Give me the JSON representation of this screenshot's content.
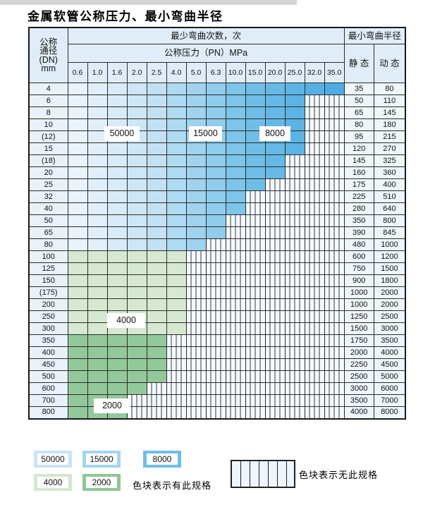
{
  "title": "金属软管公称压力、最小弯曲半径",
  "table": {
    "corner": {
      "line1": "公称",
      "line2": "通径",
      "line3": "(DN)",
      "line4": "mm"
    },
    "cycles_header": "最少弯曲次数，次",
    "pressure_header": "公称压力（PN）MPa",
    "radius_header": "最小弯曲半径",
    "static_header": "静 态",
    "dynamic_header": "动 态",
    "pressures": [
      "0.6",
      "1.0",
      "1.6",
      "2.0",
      "2.5",
      "4.0",
      "5.0",
      "6.3",
      "10.0",
      "15.0",
      "20.0",
      "25.0",
      "32.0",
      "35.0"
    ],
    "cycle_regions": {
      "blue_columns_0.6_to_2.5": "50000",
      "blue_columns_4.0_to_6.3": "15000",
      "blue_columns_10.0_to_35.0": "8000",
      "green_rows_100_to_300": "4000",
      "green_rows_350_to_800": "2000"
    },
    "rows": [
      {
        "dn": "4",
        "last": 13,
        "band": "blue",
        "static": "35",
        "dynamic": "80"
      },
      {
        "dn": "6",
        "last": 11,
        "band": "blue",
        "static": "50",
        "dynamic": "110"
      },
      {
        "dn": "8",
        "last": 11,
        "band": "blue",
        "static": "65",
        "dynamic": "145"
      },
      {
        "dn": "10",
        "last": 11,
        "band": "blue",
        "static": "80",
        "dynamic": "180"
      },
      {
        "dn": "(12)",
        "last": 11,
        "band": "blue",
        "static": "95",
        "dynamic": "215"
      },
      {
        "dn": "15",
        "last": 11,
        "band": "blue",
        "static": "120",
        "dynamic": "270"
      },
      {
        "dn": "(18)",
        "last": 10,
        "band": "blue",
        "static": "145",
        "dynamic": "325"
      },
      {
        "dn": "20",
        "last": 10,
        "band": "blue",
        "static": "160",
        "dynamic": "360"
      },
      {
        "dn": "25",
        "last": 9,
        "band": "blue",
        "static": "175",
        "dynamic": "400"
      },
      {
        "dn": "32",
        "last": 8,
        "band": "blue",
        "static": "225",
        "dynamic": "510"
      },
      {
        "dn": "40",
        "last": 8,
        "band": "blue",
        "static": "280",
        "dynamic": "640"
      },
      {
        "dn": "50",
        "last": 7,
        "band": "blue",
        "static": "350",
        "dynamic": "800"
      },
      {
        "dn": "65",
        "last": 7,
        "band": "blue",
        "static": "390",
        "dynamic": "845"
      },
      {
        "dn": "80",
        "last": 6,
        "band": "blue",
        "static": "480",
        "dynamic": "1000"
      },
      {
        "dn": "100",
        "last": 5,
        "band": "g4000",
        "static": "600",
        "dynamic": "1200"
      },
      {
        "dn": "125",
        "last": 5,
        "band": "g4000",
        "static": "750",
        "dynamic": "1500"
      },
      {
        "dn": "150",
        "last": 5,
        "band": "g4000",
        "static": "900",
        "dynamic": "1800"
      },
      {
        "dn": "(175)",
        "last": 5,
        "band": "g4000",
        "static": "1000",
        "dynamic": "2000"
      },
      {
        "dn": "200",
        "last": 5,
        "band": "g4000",
        "static": "1000",
        "dynamic": "2000"
      },
      {
        "dn": "250",
        "last": 5,
        "band": "g4000",
        "static": "1250",
        "dynamic": "2500"
      },
      {
        "dn": "300",
        "last": 5,
        "band": "g4000",
        "static": "1500",
        "dynamic": "3000"
      },
      {
        "dn": "350",
        "last": 4,
        "band": "g2000",
        "static": "1750",
        "dynamic": "3500"
      },
      {
        "dn": "400",
        "last": 4,
        "band": "g2000",
        "static": "2000",
        "dynamic": "4000"
      },
      {
        "dn": "450",
        "last": 4,
        "band": "g2000",
        "static": "2250",
        "dynamic": "4500"
      },
      {
        "dn": "500",
        "last": 4,
        "band": "g2000",
        "static": "2500",
        "dynamic": "5000"
      },
      {
        "dn": "600",
        "last": 3,
        "band": "g2000",
        "static": "3000",
        "dynamic": "6000"
      },
      {
        "dn": "700",
        "last": 2,
        "band": "g2000",
        "static": "3500",
        "dynamic": "7000"
      },
      {
        "dn": "800",
        "last": 2,
        "band": "g2000",
        "static": "4000",
        "dynamic": "8000"
      }
    ],
    "overlay_labels": [
      {
        "id": "label-50000",
        "text": "50000"
      },
      {
        "id": "label-15000",
        "text": "15000"
      },
      {
        "id": "label-8000",
        "text": "8000"
      },
      {
        "id": "label-4000",
        "text": "4000"
      },
      {
        "id": "label-2000",
        "text": "2000"
      }
    ]
  },
  "legend": {
    "has_spec_items": [
      {
        "label": "50000",
        "color": "#c9e3f6"
      },
      {
        "label": "15000",
        "color": "#a5d4f0"
      },
      {
        "label": "8000",
        "color": "#6fbde8"
      },
      {
        "label": "4000",
        "color": "#d4e7d0"
      },
      {
        "label": "2000",
        "color": "#8fc795"
      }
    ],
    "has_spec_text": "色块表示有此规格",
    "no_spec_text": "色块表示无此规格"
  },
  "colors": {
    "blue_shades": [
      "#e9f3fb",
      "#e1effa",
      "#d8ebf8",
      "#cee6f6",
      "#c4e1f4",
      "#aedaf2",
      "#9fd3ef",
      "#90ccec",
      "#7dc5ea",
      "#70bee8",
      "#66b9e6",
      "#5cb4e5",
      "#55b0e4",
      "#4fade3"
    ],
    "green_4000": "#d6e8d1",
    "green_2000": "#93c89b",
    "hatch_bg": "#f4f9fd",
    "grid": "#2b2b2b"
  }
}
